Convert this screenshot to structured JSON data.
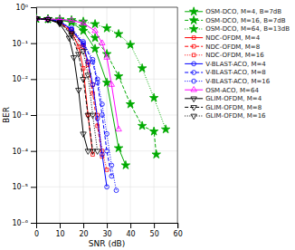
{
  "chart_data": {
    "type": "line",
    "xlabel": "SNR (dB)",
    "ylabel": "BER",
    "log": "y",
    "grid": true,
    "legend": "upper right",
    "xlim": [
      0,
      60
    ],
    "xticks": [
      0,
      10,
      20,
      30,
      40,
      50,
      60
    ],
    "ylim": [
      1e-06,
      1
    ],
    "yticks": [
      {
        "value": 1e-06,
        "label": "10⁻⁶"
      },
      {
        "value": 1e-05,
        "label": "10⁻⁵"
      },
      {
        "value": 0.0001,
        "label": "10⁻⁴"
      },
      {
        "value": 0.001,
        "label": "10⁻³"
      },
      {
        "value": 0.01,
        "label": "10⁻²"
      },
      {
        "value": 0.1,
        "label": "10⁻¹"
      },
      {
        "value": 1,
        "label": "10⁰"
      }
    ],
    "series": [
      {
        "name": "OSM-DCO, M=4, B=7dB",
        "color": "#00aa00",
        "line_style": "solid",
        "marker": "star",
        "x": [
          0,
          5,
          10,
          15,
          20,
          25,
          30,
          35,
          38
        ],
        "values": [
          0.48,
          0.47,
          0.44,
          0.38,
          0.22,
          0.07,
          0.008,
          0.00012,
          4e-05
        ]
      },
      {
        "name": "OSM-DCO, M=16, B=7dB",
        "color": "#00aa00",
        "line_style": "dashed",
        "marker": "star",
        "x": [
          0,
          5,
          10,
          15,
          20,
          25,
          30,
          35,
          40,
          45,
          50,
          51
        ],
        "values": [
          0.48,
          0.47,
          0.45,
          0.4,
          0.28,
          0.14,
          0.05,
          0.012,
          0.002,
          0.0005,
          0.00035,
          8e-05
        ]
      },
      {
        "name": "OSM-DCO, M=64, B=13dB",
        "color": "#00aa00",
        "line_style": "dotted",
        "marker": "star",
        "x": [
          0,
          5,
          10,
          15,
          20,
          25,
          30,
          35,
          40,
          45,
          50,
          55
        ],
        "values": [
          0.48,
          0.47,
          0.46,
          0.44,
          0.4,
          0.34,
          0.26,
          0.18,
          0.09,
          0.02,
          0.003,
          0.0004
        ]
      },
      {
        "name": "NDC-OFDM, M=4",
        "color": "#ff0000",
        "line_style": "solid",
        "marker": "square",
        "x": [
          0,
          5,
          10,
          15,
          18,
          20,
          22,
          24
        ],
        "values": [
          0.48,
          0.46,
          0.38,
          0.2,
          0.08,
          0.02,
          0.001,
          8e-05
        ]
      },
      {
        "name": "NDC-OFDM, M=8",
        "color": "#ff0000",
        "line_style": "dashed",
        "marker": "square",
        "x": [
          0,
          5,
          10,
          15,
          20,
          22,
          24,
          26,
          28
        ],
        "values": [
          0.48,
          0.46,
          0.39,
          0.22,
          0.08,
          0.025,
          0.004,
          0.0005,
          7e-05
        ]
      },
      {
        "name": "NDC-OFDM, M=16",
        "color": "#ff0000",
        "line_style": "dotted",
        "marker": "square",
        "x": [
          0,
          5,
          10,
          15,
          20,
          22,
          24,
          26,
          28,
          30
        ],
        "values": [
          0.48,
          0.46,
          0.4,
          0.24,
          0.09,
          0.03,
          0.007,
          0.001,
          0.0001,
          3e-05
        ]
      },
      {
        "name": "V-BLAST-ACO, M=4",
        "color": "#0000ff",
        "line_style": "solid",
        "marker": "circle",
        "x": [
          0,
          5,
          10,
          15,
          20,
          22,
          24,
          26,
          28,
          30
        ],
        "values": [
          0.48,
          0.46,
          0.4,
          0.24,
          0.09,
          0.03,
          0.007,
          0.0008,
          8e-05,
          1e-05
        ]
      },
      {
        "name": "V-BLAST-ACO, M=8",
        "color": "#0000ff",
        "line_style": "dashed",
        "marker": "circle",
        "x": [
          0,
          5,
          10,
          15,
          20,
          24,
          26,
          28,
          30,
          32
        ],
        "values": [
          0.48,
          0.46,
          0.4,
          0.24,
          0.1,
          0.03,
          0.008,
          0.001,
          0.0001,
          2e-05
        ]
      },
      {
        "name": "V-BLAST-ACO, M=16",
        "color": "#0000ff",
        "line_style": "dotted",
        "marker": "circle",
        "x": [
          0,
          5,
          10,
          15,
          20,
          24,
          26,
          28,
          30,
          32,
          34
        ],
        "values": [
          0.48,
          0.46,
          0.41,
          0.26,
          0.11,
          0.035,
          0.01,
          0.002,
          0.0003,
          4e-05,
          8e-06
        ]
      },
      {
        "name": "OSM-ACO, M=64",
        "color": "#ff00ff",
        "line_style": "solid",
        "marker": "triangle-up",
        "x": [
          0,
          5,
          10,
          15,
          20,
          25,
          28,
          30,
          32,
          35
        ],
        "values": [
          0.48,
          0.47,
          0.46,
          0.43,
          0.36,
          0.22,
          0.1,
          0.04,
          0.007,
          0.0004
        ]
      },
      {
        "name": "GLIM-OFDM, M=4",
        "color": "#000000",
        "line_style": "solid",
        "marker": "triangle-down",
        "x": [
          0,
          5,
          10,
          14,
          16,
          18,
          20,
          22
        ],
        "values": [
          0.48,
          0.46,
          0.35,
          0.14,
          0.04,
          0.005,
          0.0003,
          0.0001
        ]
      },
      {
        "name": "GLIM-OFDM, M=8",
        "color": "#000000",
        "line_style": "dashed",
        "marker": "triangle-down",
        "x": [
          0,
          5,
          10,
          15,
          18,
          20,
          22,
          24
        ],
        "values": [
          0.48,
          0.46,
          0.37,
          0.17,
          0.05,
          0.01,
          0.001,
          0.0001
        ]
      },
      {
        "name": "GLIM-OFDM, M=16",
        "color": "#000000",
        "line_style": "dotted",
        "marker": "triangle-down",
        "x": [
          0,
          5,
          10,
          15,
          20,
          22,
          24,
          26
        ],
        "values": [
          0.48,
          0.46,
          0.38,
          0.19,
          0.06,
          0.013,
          0.001,
          0.0001
        ]
      }
    ]
  }
}
